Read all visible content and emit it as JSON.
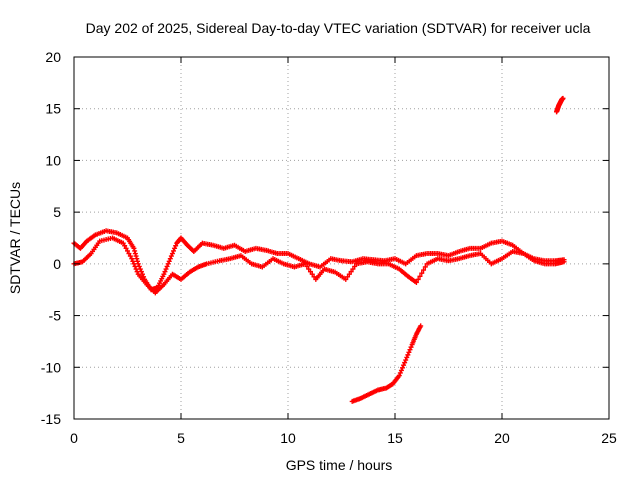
{
  "chart_data": {
    "type": "scatter",
    "title": "Day 202 of 2025, Sidereal Day-to-day VTEC variation (SDTVAR) for receiver ucla",
    "xlabel": "GPS time / hours",
    "ylabel": "SDTVAR / TECUs",
    "xlim": [
      0,
      25
    ],
    "ylim": [
      -15,
      20
    ],
    "xticks": [
      0,
      5,
      10,
      15,
      20,
      25
    ],
    "yticks": [
      -15,
      -10,
      -5,
      0,
      5,
      10,
      15,
      20
    ],
    "xtick_labels": [
      "0",
      "5",
      "10",
      "15",
      "20",
      "25"
    ],
    "ytick_labels": [
      "-15",
      "-10",
      "-5",
      "0",
      "5",
      "10",
      "15",
      "20"
    ],
    "grid": true,
    "marker": "plus",
    "color": "#ff0000",
    "series": [
      {
        "name": "band-main-upper",
        "x": [
          0.0,
          0.3,
          0.6,
          1.0,
          1.5,
          2.0,
          2.5,
          2.8,
          3.0,
          3.3,
          3.6,
          3.9,
          4.2,
          4.5,
          4.8,
          5.0,
          5.3,
          5.6,
          6.0,
          6.5,
          7.0,
          7.5,
          8.0,
          8.5,
          9.0,
          9.5,
          10.0,
          10.5,
          11.0,
          11.5,
          12.0,
          12.5,
          13.0,
          13.5,
          14.0,
          14.5,
          15.0,
          15.5,
          16.0,
          16.5,
          17.0,
          17.5,
          18.0,
          18.5,
          19.0,
          19.5,
          20.0,
          20.5,
          21.0,
          21.5,
          22.0,
          22.5,
          22.9
        ],
        "y": [
          2.0,
          1.5,
          2.2,
          2.8,
          3.2,
          3.0,
          2.5,
          1.5,
          0.0,
          -1.5,
          -2.5,
          -2.3,
          -1.0,
          0.5,
          2.0,
          2.5,
          1.8,
          1.2,
          2.0,
          1.8,
          1.5,
          1.8,
          1.2,
          1.5,
          1.3,
          1.0,
          1.0,
          0.5,
          0.0,
          -0.3,
          0.5,
          0.3,
          0.2,
          0.5,
          0.4,
          0.3,
          0.5,
          0.0,
          0.8,
          1.0,
          1.0,
          0.8,
          1.2,
          1.5,
          1.5,
          2.0,
          2.2,
          1.8,
          1.0,
          0.5,
          0.3,
          0.3,
          0.4
        ]
      },
      {
        "name": "band-main-lower",
        "x": [
          0.0,
          0.4,
          0.8,
          1.2,
          1.8,
          2.3,
          2.7,
          3.0,
          3.4,
          3.8,
          4.2,
          4.6,
          5.0,
          5.4,
          5.8,
          6.2,
          6.8,
          7.3,
          7.8,
          8.3,
          8.8,
          9.3,
          9.8,
          10.3,
          10.8,
          11.3,
          11.7,
          12.2,
          12.7,
          13.2,
          13.7,
          14.2,
          14.7,
          15.2,
          15.6,
          16.0,
          16.5,
          17.0,
          17.5,
          18.0,
          18.5,
          19.0,
          19.5,
          20.0,
          20.5,
          21.0,
          21.5,
          22.0,
          22.5,
          22.9
        ],
        "y": [
          0.0,
          0.2,
          1.0,
          2.2,
          2.5,
          2.0,
          0.5,
          -1.0,
          -2.0,
          -2.8,
          -2.0,
          -1.0,
          -1.5,
          -0.8,
          -0.3,
          0.0,
          0.3,
          0.5,
          0.8,
          0.0,
          -0.3,
          0.5,
          0.0,
          -0.3,
          0.0,
          -1.5,
          -0.5,
          -0.8,
          -1.5,
          0.0,
          0.2,
          0.0,
          0.0,
          -0.5,
          -1.2,
          -1.8,
          0.0,
          0.5,
          0.3,
          0.5,
          0.8,
          1.0,
          0.0,
          0.5,
          1.2,
          1.0,
          0.3,
          0.0,
          0.0,
          0.2
        ]
      },
      {
        "name": "branch-ascending",
        "x": [
          13.0,
          13.4,
          13.8,
          14.2,
          14.6,
          14.9,
          15.2,
          15.5,
          15.8,
          16.0,
          16.2
        ],
        "y": [
          -13.3,
          -13.0,
          -12.6,
          -12.2,
          -12.0,
          -11.6,
          -10.8,
          -9.3,
          -7.8,
          -6.8,
          -6.0
        ]
      },
      {
        "name": "late-cluster",
        "x": [
          22.55,
          22.6,
          22.65,
          22.7,
          22.75,
          22.8,
          22.85
        ],
        "y": [
          14.7,
          15.0,
          15.3,
          15.5,
          15.7,
          15.9,
          16.0
        ]
      }
    ]
  }
}
